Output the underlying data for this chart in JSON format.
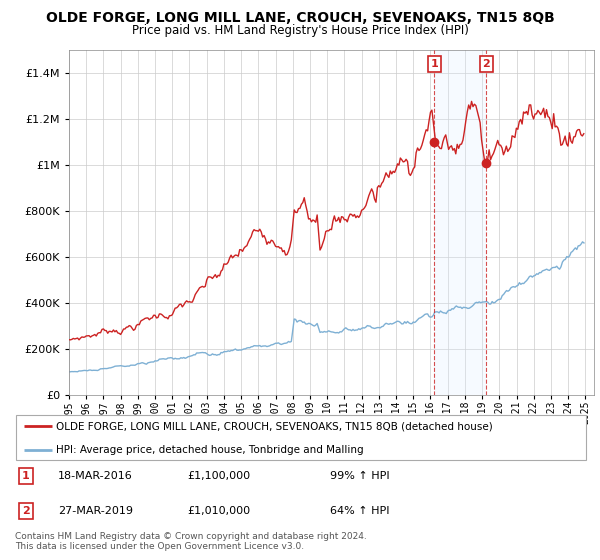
{
  "title": "OLDE FORGE, LONG MILL LANE, CROUCH, SEVENOAKS, TN15 8QB",
  "subtitle": "Price paid vs. HM Land Registry's House Price Index (HPI)",
  "legend_line1": "OLDE FORGE, LONG MILL LANE, CROUCH, SEVENOAKS, TN15 8QB (detached house)",
  "legend_line2": "HPI: Average price, detached house, Tonbridge and Malling",
  "annotation1_date": "18-MAR-2016",
  "annotation1_price": "£1,100,000",
  "annotation1_hpi": "99% ↑ HPI",
  "annotation2_date": "27-MAR-2019",
  "annotation2_price": "£1,010,000",
  "annotation2_hpi": "64% ↑ HPI",
  "copyright": "Contains HM Land Registry data © Crown copyright and database right 2024.\nThis data is licensed under the Open Government Licence v3.0.",
  "red_color": "#cc2222",
  "blue_color": "#7eb0d4",
  "shading_color": "#ddeeff",
  "vline_color": "#cc2222",
  "ylim": [
    0,
    1500000
  ],
  "yticks": [
    0,
    200000,
    400000,
    600000,
    800000,
    1000000,
    1200000,
    1400000
  ],
  "ytick_labels": [
    "£0",
    "£200K",
    "£400K",
    "£600K",
    "£800K",
    "£1M",
    "£1.2M",
    "£1.4M"
  ],
  "sale1_x": 2016.22,
  "sale1_y": 1100000,
  "sale2_x": 2019.24,
  "sale2_y": 1010000,
  "xmin": 1995.0,
  "xmax": 2025.5
}
